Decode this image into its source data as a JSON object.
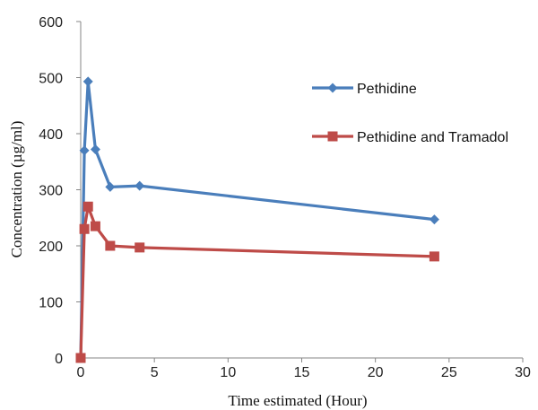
{
  "chart_data": {
    "type": "line",
    "title": "",
    "xlabel": "Time estimated (Hour)",
    "ylabel": "Concentration (µg/ml)",
    "xlim": [
      0,
      30
    ],
    "ylim": [
      0,
      600
    ],
    "x_ticks": [
      0,
      5,
      10,
      15,
      20,
      25,
      30
    ],
    "y_ticks": [
      0,
      100,
      200,
      300,
      400,
      500,
      600
    ],
    "grid": false,
    "legend_position": "right",
    "series": [
      {
        "name": "Pethidine",
        "color": "#4a7ebb",
        "marker": "diamond",
        "x": [
          0,
          0.25,
          0.5,
          1,
          2,
          4,
          24
        ],
        "y": [
          0,
          370,
          493,
          372,
          305,
          307,
          247
        ]
      },
      {
        "name": "Pethidine and Tramadol",
        "color": "#be4b48",
        "marker": "square",
        "x": [
          0,
          0.25,
          0.5,
          1,
          2,
          4,
          24
        ],
        "y": [
          0,
          230,
          270,
          235,
          200,
          197,
          181
        ]
      }
    ]
  }
}
